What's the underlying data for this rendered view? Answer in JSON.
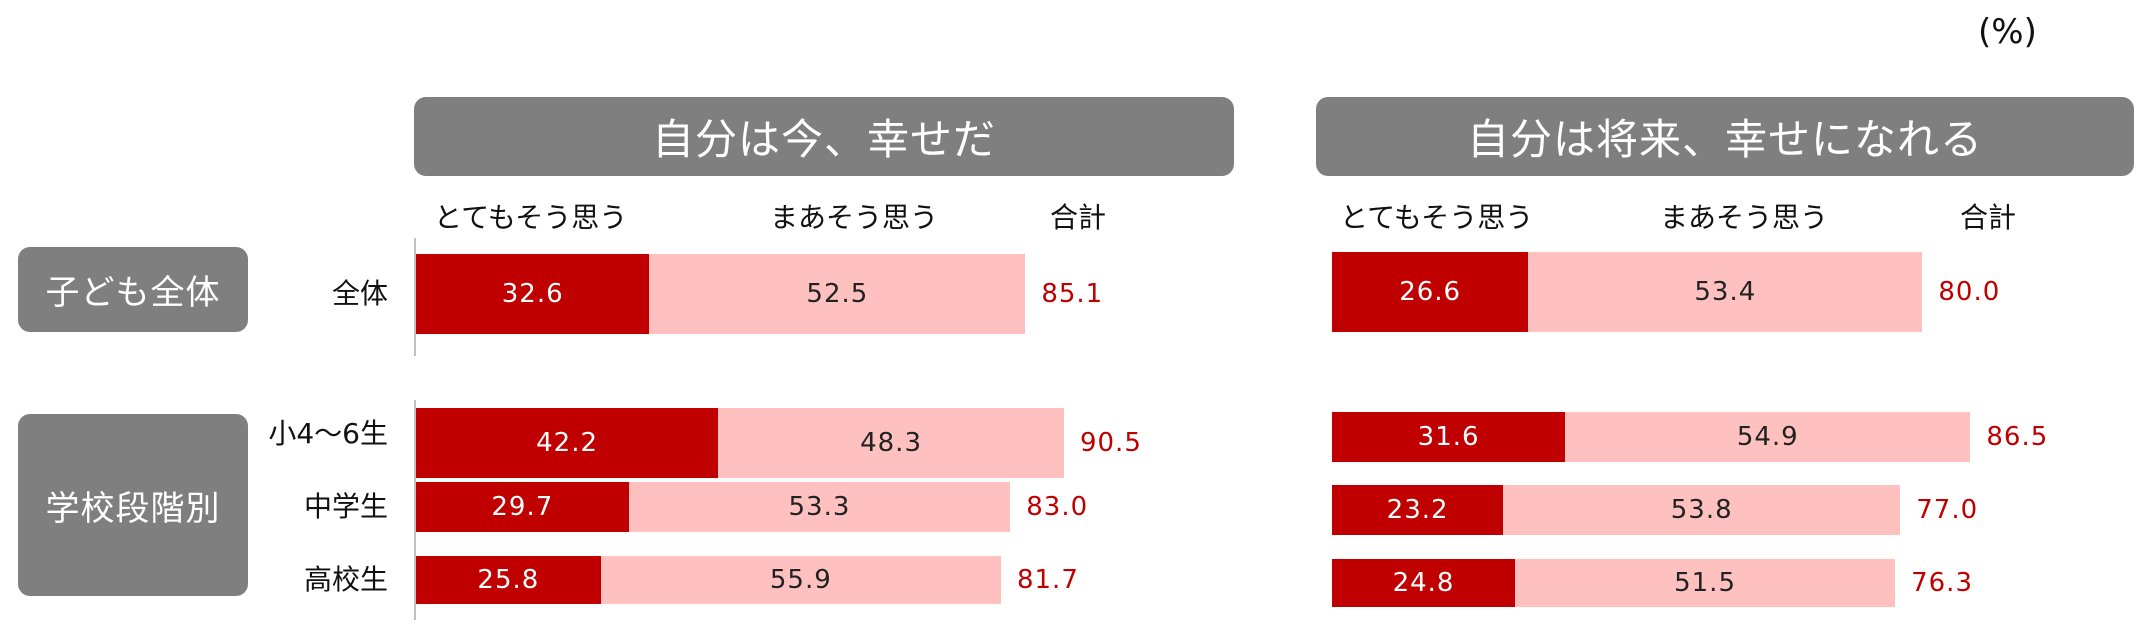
{
  "unit_label": "(%)",
  "groups": [
    {
      "label": "子ども全体"
    },
    {
      "label": "学校段階別"
    }
  ],
  "row_labels": [
    "全体",
    "小4～6生",
    "中学生",
    "高校生"
  ],
  "chart_data": [
    {
      "type": "bar",
      "orientation": "horizontal",
      "stacked": true,
      "title": "自分は今、幸せだ",
      "column_headers": {
        "strong": "とてもそう思う",
        "mild": "まあそう思う",
        "total": "合計"
      },
      "categories": [
        "全体",
        "小4～6生",
        "中学生",
        "高校生"
      ],
      "series": [
        {
          "name": "とてもそう思う",
          "color": "#c00000",
          "values": [
            32.6,
            42.2,
            29.7,
            25.8
          ]
        },
        {
          "name": "まあそう思う",
          "color": "#ffc0c0",
          "values": [
            52.5,
            48.3,
            53.3,
            55.9
          ]
        }
      ],
      "totals": [
        "85.1",
        "90.5",
        "83.0",
        "81.7"
      ]
    },
    {
      "type": "bar",
      "orientation": "horizontal",
      "stacked": true,
      "title": "自分は将来、幸せになれる",
      "column_headers": {
        "strong": "とてもそう思う",
        "mild": "まあそう思う",
        "total": "合計"
      },
      "categories": [
        "全体",
        "小4～6生",
        "中学生",
        "高校生"
      ],
      "series": [
        {
          "name": "とてもそう思う",
          "color": "#c00000",
          "values": [
            26.6,
            31.6,
            23.2,
            24.8
          ]
        },
        {
          "name": "まあそう思う",
          "color": "#ffc0c0",
          "values": [
            53.4,
            54.9,
            53.8,
            51.5
          ]
        }
      ],
      "totals": [
        "80.0",
        "86.5",
        "77.0",
        "76.3"
      ]
    }
  ]
}
